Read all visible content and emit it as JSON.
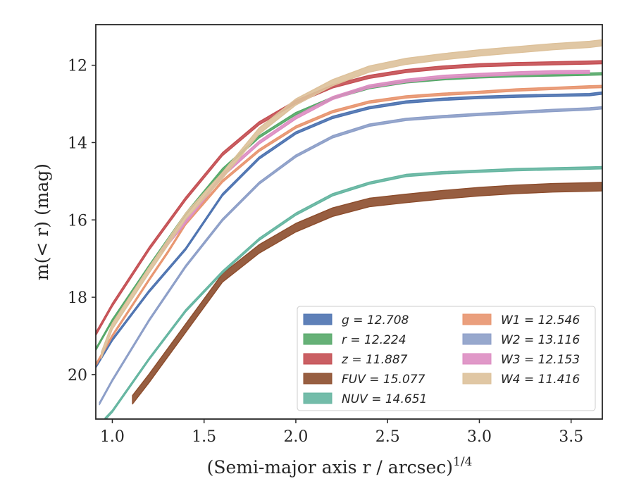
{
  "chart_data": {
    "type": "line",
    "title": "",
    "xlabel": "(Semi-major axis r / arcsec)",
    "xlabel_exponent": "1/4",
    "ylabel": "m(< r) (mag)",
    "xlim": [
      0.91,
      3.67
    ],
    "ylim": [
      21.15,
      10.95
    ],
    "y_inverted": true,
    "grid": false,
    "legend_position": "lower-right",
    "legend_columns": 2,
    "xticks": [
      1.0,
      1.5,
      2.0,
      2.5,
      3.0,
      3.5
    ],
    "yticks": [
      12,
      14,
      16,
      18,
      20
    ],
    "xtick_labels": [
      "1.0",
      "1.5",
      "2.0",
      "2.5",
      "3.0",
      "3.5"
    ],
    "ytick_labels": [
      "12",
      "14",
      "16",
      "18",
      "20"
    ],
    "series": [
      {
        "name": "g = 12.708",
        "color": "#4c72b0",
        "band": 0.06,
        "x": [
          0.91,
          1.0,
          1.2,
          1.4,
          1.6,
          1.8,
          2.0,
          2.2,
          2.4,
          2.6,
          2.8,
          3.0,
          3.2,
          3.4,
          3.6,
          3.67
        ],
        "y": [
          19.8,
          19.1,
          17.85,
          16.75,
          15.35,
          14.4,
          13.75,
          13.35,
          13.1,
          12.95,
          12.88,
          12.83,
          12.8,
          12.78,
          12.76,
          12.72
        ]
      },
      {
        "name": "r = 12.224",
        "color": "#55a868",
        "band": 0.06,
        "x": [
          0.91,
          1.0,
          1.2,
          1.4,
          1.6,
          1.8,
          2.0,
          2.2,
          2.4,
          2.6,
          2.8,
          3.0,
          3.2,
          3.4,
          3.6,
          3.67
        ],
        "y": [
          19.35,
          18.6,
          17.2,
          15.85,
          14.7,
          13.85,
          13.25,
          12.85,
          12.58,
          12.43,
          12.35,
          12.3,
          12.27,
          12.25,
          12.23,
          12.22
        ]
      },
      {
        "name": "z = 11.887",
        "color": "#c44e52",
        "band": 0.08,
        "x": [
          0.91,
          1.0,
          1.2,
          1.4,
          1.6,
          1.8,
          2.0,
          2.2,
          2.4,
          2.6,
          2.8,
          3.0,
          3.2,
          3.4,
          3.6,
          3.67
        ],
        "y": [
          18.95,
          18.2,
          16.75,
          15.45,
          14.3,
          13.5,
          12.95,
          12.55,
          12.3,
          12.15,
          12.06,
          12.0,
          11.97,
          11.95,
          11.93,
          11.92
        ]
      },
      {
        "name": "FUV = 15.077",
        "color": "#8c4c2c",
        "band": 0.22,
        "x": [
          1.11,
          1.2,
          1.4,
          1.6,
          1.8,
          2.0,
          2.2,
          2.4,
          2.59,
          2.8,
          3.0,
          3.2,
          3.4,
          3.6,
          3.67
        ],
        "y": [
          20.65,
          20.1,
          18.8,
          17.5,
          16.75,
          16.2,
          15.8,
          15.55,
          15.45,
          15.35,
          15.27,
          15.21,
          15.17,
          15.15,
          15.14
        ]
      },
      {
        "name": "NUV = 14.651",
        "color": "#64b5a0",
        "band": 0.06,
        "x": [
          0.96,
          1.0,
          1.2,
          1.4,
          1.6,
          1.8,
          2.0,
          2.2,
          2.4,
          2.6,
          2.8,
          3.0,
          3.1,
          3.2,
          3.4,
          3.6,
          3.67
        ],
        "y": [
          21.15,
          20.95,
          19.6,
          18.35,
          17.35,
          16.5,
          15.85,
          15.35,
          15.05,
          14.85,
          14.78,
          14.74,
          14.72,
          14.7,
          14.68,
          14.66,
          14.65
        ]
      },
      {
        "name": "W1 = 12.546",
        "color": "#e8956f",
        "band": 0.06,
        "x": [
          0.91,
          1.0,
          1.2,
          1.3,
          1.4,
          1.6,
          1.8,
          2.0,
          2.2,
          2.4,
          2.6,
          2.8,
          3.0,
          3.2,
          3.4,
          3.6,
          3.67
        ],
        "y": [
          19.75,
          19.0,
          17.55,
          16.85,
          16.1,
          15.0,
          14.2,
          13.6,
          13.2,
          12.95,
          12.82,
          12.75,
          12.7,
          12.64,
          12.6,
          12.56,
          12.55
        ]
      },
      {
        "name": "W2 = 13.116",
        "color": "#8c9ec8",
        "band": 0.06,
        "x": [
          0.93,
          1.0,
          1.2,
          1.4,
          1.6,
          1.8,
          2.0,
          2.2,
          2.4,
          2.6,
          2.8,
          3.0,
          3.2,
          3.4,
          3.6,
          3.67
        ],
        "y": [
          20.75,
          20.15,
          18.6,
          17.2,
          16.0,
          15.05,
          14.35,
          13.85,
          13.55,
          13.4,
          13.33,
          13.27,
          13.22,
          13.17,
          13.13,
          13.1
        ]
      },
      {
        "name": "W3 = 12.153",
        "color": "#dd8dc2",
        "band": 0.08,
        "x": [
          1.27,
          1.4,
          1.6,
          1.8,
          2.0,
          2.2,
          2.4,
          2.6,
          2.8,
          3.0,
          3.2,
          3.4,
          3.6
        ],
        "y": [
          16.8,
          16.05,
          14.85,
          14.0,
          13.35,
          12.85,
          12.55,
          12.4,
          12.3,
          12.25,
          12.21,
          12.18,
          12.17
        ]
      },
      {
        "name": "W4 = 11.416",
        "color": "#ddc19a",
        "band": 0.16,
        "x": [
          0.94,
          1.0,
          1.2,
          1.4,
          1.6,
          1.8,
          2.0,
          2.2,
          2.4,
          2.6,
          2.8,
          3.0,
          3.2,
          3.4,
          3.6,
          3.67
        ],
        "y": [
          19.5,
          18.75,
          17.3,
          15.9,
          14.85,
          13.7,
          12.95,
          12.45,
          12.1,
          11.9,
          11.78,
          11.68,
          11.6,
          11.52,
          11.46,
          11.42
        ]
      }
    ]
  }
}
